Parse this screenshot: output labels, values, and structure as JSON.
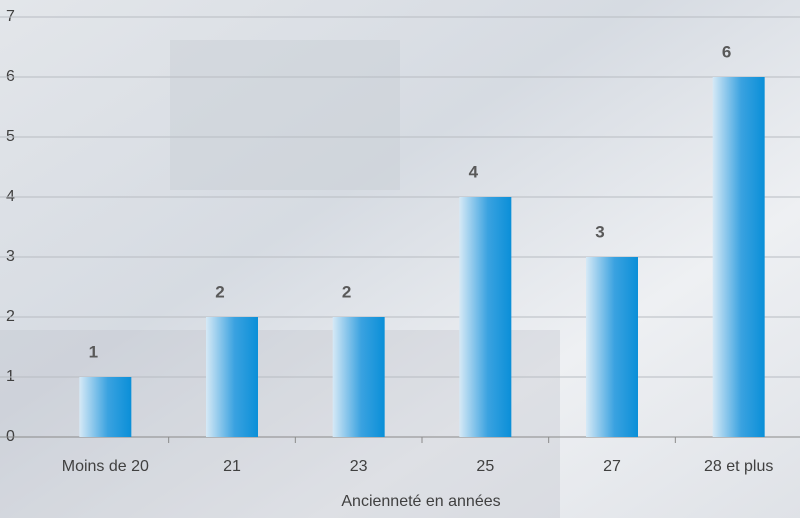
{
  "chart_data": {
    "type": "bar",
    "xlabel": "Ancienneté en années",
    "categories": [
      "Moins de 20",
      "21",
      "23",
      "25",
      "27",
      "28 et plus"
    ],
    "values": [
      1,
      2,
      2,
      4,
      3,
      6
    ],
    "color": "#0a8fd8",
    "ylim": [
      0,
      7
    ],
    "yticks": [
      0,
      1,
      2,
      3,
      4,
      5,
      6,
      7
    ],
    "grid": true
  }
}
